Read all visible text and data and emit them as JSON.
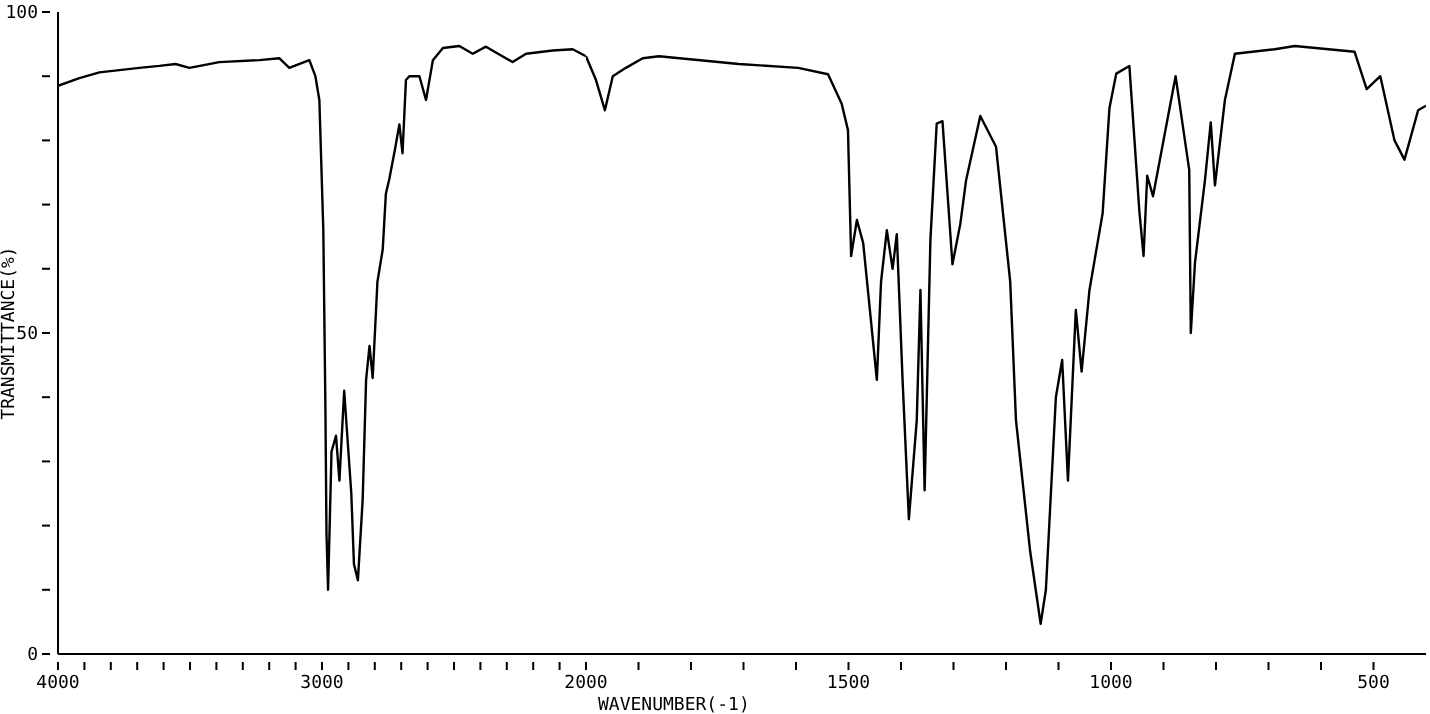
{
  "chart_data": [
    {
      "type": "line",
      "ylabel": "TRANSMITTANCE(%)",
      "xlim": [
        4000,
        2000
      ],
      "ylim": [
        0,
        100
      ],
      "grid": false,
      "legend": false,
      "xticks": [
        4000,
        {
          "value": 3900,
          "label": null
        },
        {
          "value": 3800,
          "label": null
        },
        {
          "value": 3700,
          "label": null
        },
        {
          "value": 3600,
          "label": null
        },
        {
          "value": 3500,
          "label": null
        },
        {
          "value": 3400,
          "label": null
        },
        {
          "value": 3300,
          "label": null
        },
        {
          "value": 3200,
          "label": null
        },
        {
          "value": 3100,
          "label": null
        },
        3000,
        {
          "value": 2900,
          "label": null
        },
        {
          "value": 2800,
          "label": null
        },
        {
          "value": 2700,
          "label": null
        },
        {
          "value": 2600,
          "label": null
        },
        {
          "value": 2500,
          "label": null
        },
        {
          "value": 2400,
          "label": null
        },
        {
          "value": 2300,
          "label": null
        },
        {
          "value": 2200,
          "label": null
        },
        {
          "value": 2100,
          "label": null
        }
      ],
      "yticks": [
        0,
        {
          "value": 10,
          "label": null
        },
        {
          "value": 20,
          "label": null
        },
        {
          "value": 30,
          "label": null
        },
        {
          "value": 40,
          "label": null
        },
        50,
        {
          "value": 60,
          "label": null
        },
        {
          "value": 70,
          "label": null
        },
        {
          "value": 80,
          "label": null
        },
        {
          "value": 90,
          "label": null
        },
        100
      ],
      "marker": "none",
      "line_style": "solid",
      "series": [
        {
          "color": "#000000",
          "x": [
            4000,
            3919,
            3843,
            3692,
            3616,
            3555,
            3502,
            3389,
            3237,
            3162,
            3124,
            3048,
            3025,
            3010,
            2995,
            2987,
            2983,
            2977,
            2964,
            2947,
            2934,
            2916,
            2889,
            2879,
            2864,
            2846,
            2833,
            2820,
            2808,
            2790,
            2770,
            2758,
            2745,
            2724,
            2707,
            2695,
            2682,
            2669,
            2631,
            2606,
            2580,
            2542,
            2480,
            2429,
            2379,
            2278,
            2227,
            2126,
            2050,
            2000
          ],
          "values": [
            88.5,
            89.7,
            90.6,
            91.3,
            91.6,
            91.9,
            91.3,
            92.2,
            92.5,
            92.8,
            91.3,
            92.5,
            90,
            86.3,
            66,
            38,
            18.7,
            10,
            31.5,
            34,
            27,
            41,
            25,
            14,
            11.5,
            24,
            42.7,
            48,
            43,
            58,
            63,
            71.7,
            74,
            78.5,
            82.5,
            78,
            89.4,
            90,
            90,
            86.3,
            92.5,
            94.4,
            94.7,
            93.5,
            94.6,
            92.2,
            93.5,
            94,
            94.2,
            93.1
          ]
        }
      ]
    },
    {
      "type": "line",
      "xlabel": "WAVENUMBER(-1)",
      "xlim": [
        2000,
        400
      ],
      "ylim": [
        0,
        100
      ],
      "tick_labels": "x",
      "grid": false,
      "legend": false,
      "xticks": [
        2000,
        {
          "value": 1900,
          "label": null
        },
        {
          "value": 1800,
          "label": null
        },
        {
          "value": 1700,
          "label": null
        },
        {
          "value": 1600,
          "label": null
        },
        1500,
        {
          "value": 1400,
          "label": null
        },
        {
          "value": 1300,
          "label": null
        },
        {
          "value": 1200,
          "label": null
        },
        {
          "value": 1100,
          "label": null
        },
        1000,
        {
          "value": 900,
          "label": null
        },
        {
          "value": 800,
          "label": null
        },
        {
          "value": 700,
          "label": null
        },
        {
          "value": 600,
          "label": null
        },
        500
      ],
      "marker": "none",
      "line_style": "solid",
      "series": [
        {
          "color": "#000000",
          "x": [
            2000,
            1981,
            1964,
            1949,
            1924,
            1892,
            1861,
            1709,
            1596,
            1539,
            1513,
            1501,
            1495,
            1484,
            1472,
            1461,
            1446,
            1438,
            1427,
            1416,
            1408,
            1397,
            1385,
            1370,
            1363,
            1355,
            1344,
            1332,
            1321,
            1302,
            1287,
            1276,
            1249,
            1219,
            1192,
            1181,
            1154,
            1134,
            1124,
            1105,
            1093,
            1082,
            1067,
            1056,
            1041,
            1016,
            1003,
            990,
            965,
            946,
            938,
            931,
            920,
            877,
            851,
            848,
            840,
            821,
            810,
            802,
            783,
            764,
            688,
            650,
            536,
            513,
            487,
            460,
            441,
            415,
            400
          ],
          "values": [
            93.1,
            89.4,
            84.7,
            90,
            91.3,
            92.8,
            93.1,
            91.9,
            91.3,
            90.3,
            85.7,
            81.6,
            62,
            67.6,
            64,
            55,
            42.7,
            58,
            66,
            60,
            65.4,
            42.7,
            21,
            36.4,
            56.7,
            25.5,
            64.5,
            82.6,
            83,
            60.7,
            67,
            73.8,
            83.8,
            79,
            58,
            36.4,
            16,
            4.7,
            10,
            40,
            45.8,
            27,
            53.6,
            44,
            56.7,
            68.6,
            85,
            90.4,
            91.6,
            69,
            62,
            74.5,
            71.3,
            90,
            75.4,
            50,
            61,
            73.8,
            82.8,
            73,
            86.3,
            93.5,
            94.2,
            94.7,
            93.8,
            88,
            90,
            80,
            77,
            84.7,
            85.4
          ]
        }
      ]
    }
  ]
}
